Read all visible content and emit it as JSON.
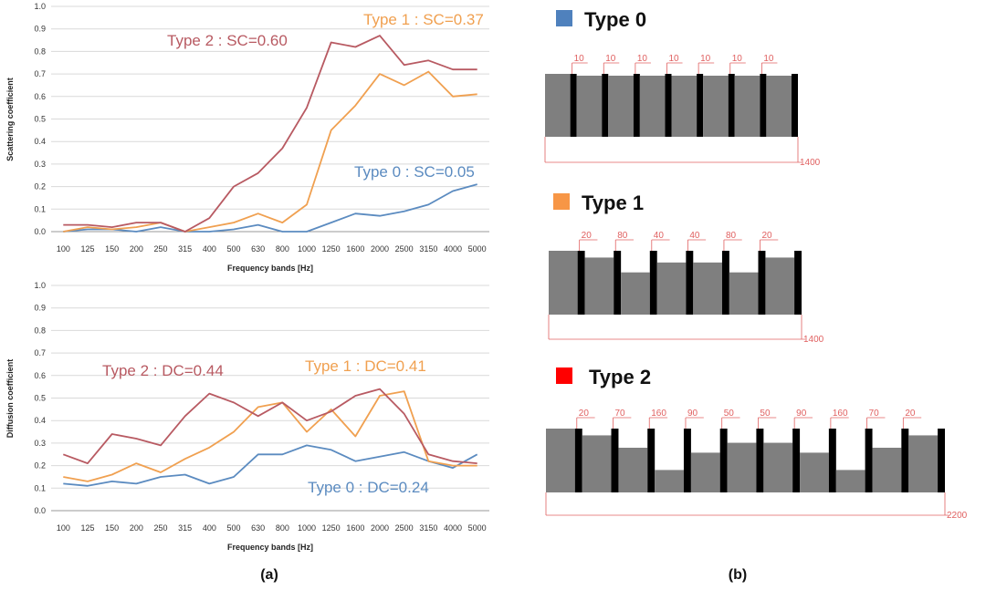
{
  "chart_data": [
    {
      "type": "line",
      "id": "scattering",
      "xlabel": "Frequency bands [Hz]",
      "ylabel": "Scattering coefficient",
      "ylim": [
        0,
        1.0
      ],
      "yticks": [
        "0.0",
        "0.1",
        "0.2",
        "0.3",
        "0.4",
        "0.5",
        "0.6",
        "0.7",
        "0.8",
        "0.9",
        "1.0"
      ],
      "categories": [
        "100",
        "125",
        "150",
        "200",
        "250",
        "315",
        "400",
        "500",
        "630",
        "800",
        "1000",
        "1250",
        "1600",
        "2000",
        "2500",
        "3150",
        "4000",
        "5000"
      ],
      "grid": true,
      "series": [
        {
          "name": "Type 0",
          "color": "#5b8bc0",
          "values": [
            0.0,
            0.01,
            0.01,
            0.0,
            0.02,
            0.0,
            0.0,
            0.01,
            0.03,
            0.0,
            0.0,
            0.04,
            0.08,
            0.07,
            0.09,
            0.12,
            0.18,
            0.21
          ]
        },
        {
          "name": "Type 1",
          "color": "#f0a050",
          "values": [
            0.0,
            0.02,
            0.01,
            0.02,
            0.04,
            0.0,
            0.02,
            0.04,
            0.08,
            0.04,
            0.12,
            0.45,
            0.56,
            0.7,
            0.65,
            0.71,
            0.6,
            0.61
          ]
        },
        {
          "name": "Type 2",
          "color": "#b85a62",
          "values": [
            0.03,
            0.03,
            0.02,
            0.04,
            0.04,
            0.0,
            0.06,
            0.2,
            0.26,
            0.37,
            0.55,
            0.84,
            0.82,
            0.87,
            0.74,
            0.76,
            0.72,
            0.72
          ]
        }
      ],
      "annotations": [
        {
          "text": "Type 2 : SC=0.60",
          "color": "#b85a62"
        },
        {
          "text": "Type 1 : SC=0.37",
          "color": "#f0a050"
        },
        {
          "text": "Type 0 : SC=0.05",
          "color": "#5b8bc0"
        }
      ]
    },
    {
      "type": "line",
      "id": "diffusion",
      "xlabel": "Frequency bands [Hz]",
      "ylabel": "Diffusion coefficient",
      "ylim": [
        0,
        1.0
      ],
      "yticks": [
        "0.0",
        "0.1",
        "0.2",
        "0.3",
        "0.4",
        "0.5",
        "0.6",
        "0.7",
        "0.8",
        "0.9",
        "1.0"
      ],
      "categories": [
        "100",
        "125",
        "150",
        "200",
        "250",
        "315",
        "400",
        "500",
        "630",
        "800",
        "1000",
        "1250",
        "1600",
        "2000",
        "2500",
        "3150",
        "4000",
        "5000"
      ],
      "grid": true,
      "series": [
        {
          "name": "Type 0",
          "color": "#5b8bc0",
          "values": [
            0.12,
            0.11,
            0.13,
            0.12,
            0.15,
            0.16,
            0.12,
            0.15,
            0.25,
            0.25,
            0.29,
            0.27,
            0.22,
            0.24,
            0.26,
            0.22,
            0.19,
            0.25
          ]
        },
        {
          "name": "Type 1",
          "color": "#f0a050",
          "values": [
            0.15,
            0.13,
            0.16,
            0.21,
            0.17,
            0.23,
            0.28,
            0.35,
            0.46,
            0.48,
            0.35,
            0.45,
            0.33,
            0.51,
            0.53,
            0.22,
            0.2,
            0.2
          ]
        },
        {
          "name": "Type 2",
          "color": "#b85a62",
          "values": [
            0.25,
            0.21,
            0.34,
            0.32,
            0.29,
            0.42,
            0.52,
            0.48,
            0.42,
            0.48,
            0.4,
            0.44,
            0.51,
            0.54,
            0.43,
            0.25,
            0.22,
            0.21
          ]
        }
      ],
      "annotations": [
        {
          "text": "Type 2 : DC=0.44",
          "color": "#b85a62"
        },
        {
          "text": "Type 1 : DC=0.41",
          "color": "#f0a050"
        },
        {
          "text": "Type 0 : DC=0.24",
          "color": "#5b8bc0"
        }
      ]
    }
  ],
  "panel_labels": {
    "a": "(a)",
    "b": "(b)"
  },
  "profiles": [
    {
      "title": "Type 0",
      "swatch_color": "#4f81bd",
      "gap_labels": [
        "10",
        "10",
        "10",
        "10",
        "10",
        "10",
        "10"
      ],
      "well_depths": [
        0,
        0,
        0,
        0,
        0,
        0,
        0
      ],
      "total_width": "1400"
    },
    {
      "title": "Type 1",
      "swatch_color": "#f79646",
      "gap_labels": [
        "20",
        "80",
        "40",
        "40",
        "80",
        "20"
      ],
      "well_depths": [
        20,
        80,
        40,
        40,
        80,
        20
      ],
      "total_width": "1400"
    },
    {
      "title": "Type 2",
      "swatch_color": "#ff0000",
      "gap_labels": [
        "20",
        "70",
        "160",
        "90",
        "50",
        "50",
        "90",
        "160",
        "70",
        "20"
      ],
      "well_depths": [
        20,
        70,
        160,
        90,
        50,
        50,
        90,
        160,
        70,
        20
      ],
      "total_width": "2200"
    }
  ]
}
